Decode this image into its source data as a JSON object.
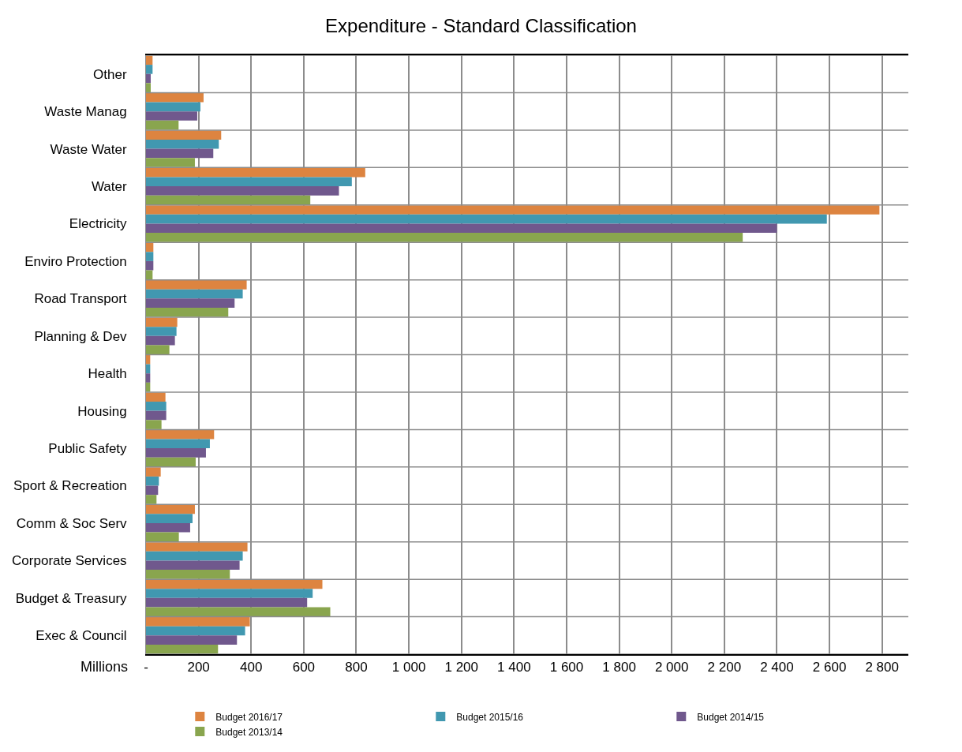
{
  "chart_data": {
    "type": "bar",
    "orientation": "horizontal",
    "title": "Expenditure - Standard Classification",
    "categories": [
      "Other",
      "Waste Manag",
      "Waste Water",
      "Water",
      "Electricity",
      "Enviro Protection",
      "Road Transport",
      "Planning & Dev",
      "Health",
      "Housing",
      "Public Safety",
      "Sport & Recreation",
      "Comm & Soc Serv",
      "Corporate Services",
      "Budget & Treasury",
      "Exec & Council"
    ],
    "series": [
      {
        "name": "Budget 2016/17",
        "color": "#dd8440",
        "values": [
          25,
          219,
          286,
          834,
          2790,
          28,
          383,
          119,
          16,
          74,
          259,
          56,
          186,
          386,
          671,
          395
        ]
      },
      {
        "name": "Budget 2015/16",
        "color": "#4198b0",
        "values": [
          25,
          207,
          277,
          783,
          2590,
          28,
          368,
          116,
          16,
          77,
          243,
          49,
          177,
          368,
          634,
          377
        ]
      },
      {
        "name": "Budget 2014/15",
        "color": "#70588d",
        "values": [
          18,
          195,
          256,
          734,
          2400,
          28,
          337,
          110,
          16,
          77,
          228,
          46,
          168,
          356,
          613,
          346
        ]
      },
      {
        "name": "Budget 2013/14",
        "color": "#89a54e",
        "values": [
          18,
          124,
          186,
          625,
          2270,
          25,
          313,
          89,
          16,
          59,
          189,
          40,
          125,
          319,
          701,
          274
        ]
      }
    ],
    "xlim": [
      0,
      2900
    ],
    "xticks": [
      {
        "value": 0,
        "label": "-"
      },
      200,
      400,
      600,
      800,
      {
        "value": 1000,
        "label": "1 000"
      },
      {
        "value": 1200,
        "label": "1 200"
      },
      {
        "value": 1400,
        "label": "1 400"
      },
      {
        "value": 1600,
        "label": "1 600"
      },
      {
        "value": 1800,
        "label": "1 800"
      },
      {
        "value": 2000,
        "label": "2 000"
      },
      {
        "value": 2200,
        "label": "2 200"
      },
      {
        "value": 2400,
        "label": "2 400"
      },
      {
        "value": 2600,
        "label": "2 600"
      },
      {
        "value": 2800,
        "label": "2 800"
      }
    ],
    "annotations": [
      "Millions"
    ],
    "grid": true,
    "legend": "bottom"
  }
}
